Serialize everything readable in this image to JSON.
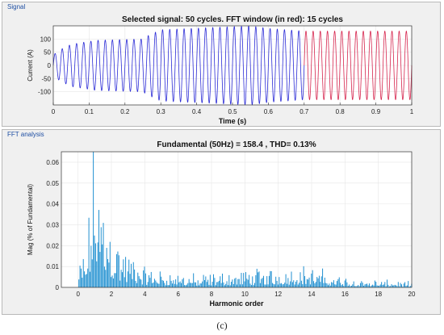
{
  "panels": {
    "signal_label": "Signal",
    "fft_label": "FFT analysis"
  },
  "caption": "(c)",
  "colors": {
    "panel_bg": "#f0f0f0",
    "signal_blue": "#2b2bd6",
    "fft_window_red": "#d6254e",
    "fft_bar": "#1f8fd0",
    "grid": "#e6e6e6"
  },
  "chart_data": [
    {
      "type": "line",
      "title": "Selected signal: 50 cycles. FFT window (in red): 15 cycles",
      "xlabel": "Time (s)",
      "ylabel": "Current (A)",
      "xlim": [
        0,
        1
      ],
      "ylim": [
        -150,
        150
      ],
      "x_ticks": [
        "0",
        "0.1",
        "0.2",
        "0.3",
        "0.4",
        "0.5",
        "0.6",
        "0.7",
        "0.8",
        "0.9",
        "1"
      ],
      "y_ticks": [
        "-100",
        "-50",
        "0",
        "50",
        "100"
      ],
      "grid": true,
      "frequency_hz": 50,
      "fft_window_start_s": 0.7,
      "envelope": [
        {
          "t": 0.0,
          "amp": 40
        },
        {
          "t": 0.02,
          "amp": 60
        },
        {
          "t": 0.05,
          "amp": 80
        },
        {
          "t": 0.12,
          "amp": 95
        },
        {
          "t": 0.25,
          "amp": 100
        },
        {
          "t": 0.26,
          "amp": 110
        },
        {
          "t": 0.3,
          "amp": 135
        },
        {
          "t": 0.55,
          "amp": 150
        },
        {
          "t": 0.6,
          "amp": 140
        },
        {
          "t": 0.7,
          "amp": 130
        },
        {
          "t": 1.0,
          "amp": 130
        }
      ],
      "series": [
        {
          "values_note": "",
          "segment": "signal",
          "t_range": [
            0,
            0.7
          ]
        },
        {
          "values_note": "",
          "segment": "fft_window",
          "t_range": [
            0.7,
            1.0
          ]
        }
      ]
    },
    {
      "type": "bar",
      "title": "Fundamental (50Hz) = 158.4 , THD= 0.13%",
      "xlabel": "Harmonic order",
      "ylabel": "Mag (% of Fundamental)",
      "xlim": [
        -1,
        20
      ],
      "ylim": [
        0,
        0.065
      ],
      "x_ticks": [
        "0",
        "2",
        "4",
        "6",
        "8",
        "10",
        "12",
        "14",
        "16",
        "18",
        "20"
      ],
      "y_ticks": [
        "0",
        "0.01",
        "0.02",
        "0.03",
        "0.04",
        "0.05",
        "0.06"
      ],
      "grid": true,
      "spectrum_profile": [
        {
          "h": 0.0,
          "level": 0.008
        },
        {
          "h": 0.5,
          "level": 0.018
        },
        {
          "h": 0.8,
          "level": 0.04
        },
        {
          "h": 1.0,
          "level": 0.065
        },
        {
          "h": 1.3,
          "level": 0.045
        },
        {
          "h": 2.0,
          "level": 0.03
        },
        {
          "h": 2.6,
          "level": 0.018
        },
        {
          "h": 4.0,
          "level": 0.008
        },
        {
          "h": 7.0,
          "level": 0.005
        },
        {
          "h": 10.0,
          "level": 0.007
        },
        {
          "h": 13.5,
          "level": 0.009
        },
        {
          "h": 16.0,
          "level": 0.004
        },
        {
          "h": 20.0,
          "level": 0.002
        }
      ],
      "bin_width": 0.0667
    }
  ]
}
